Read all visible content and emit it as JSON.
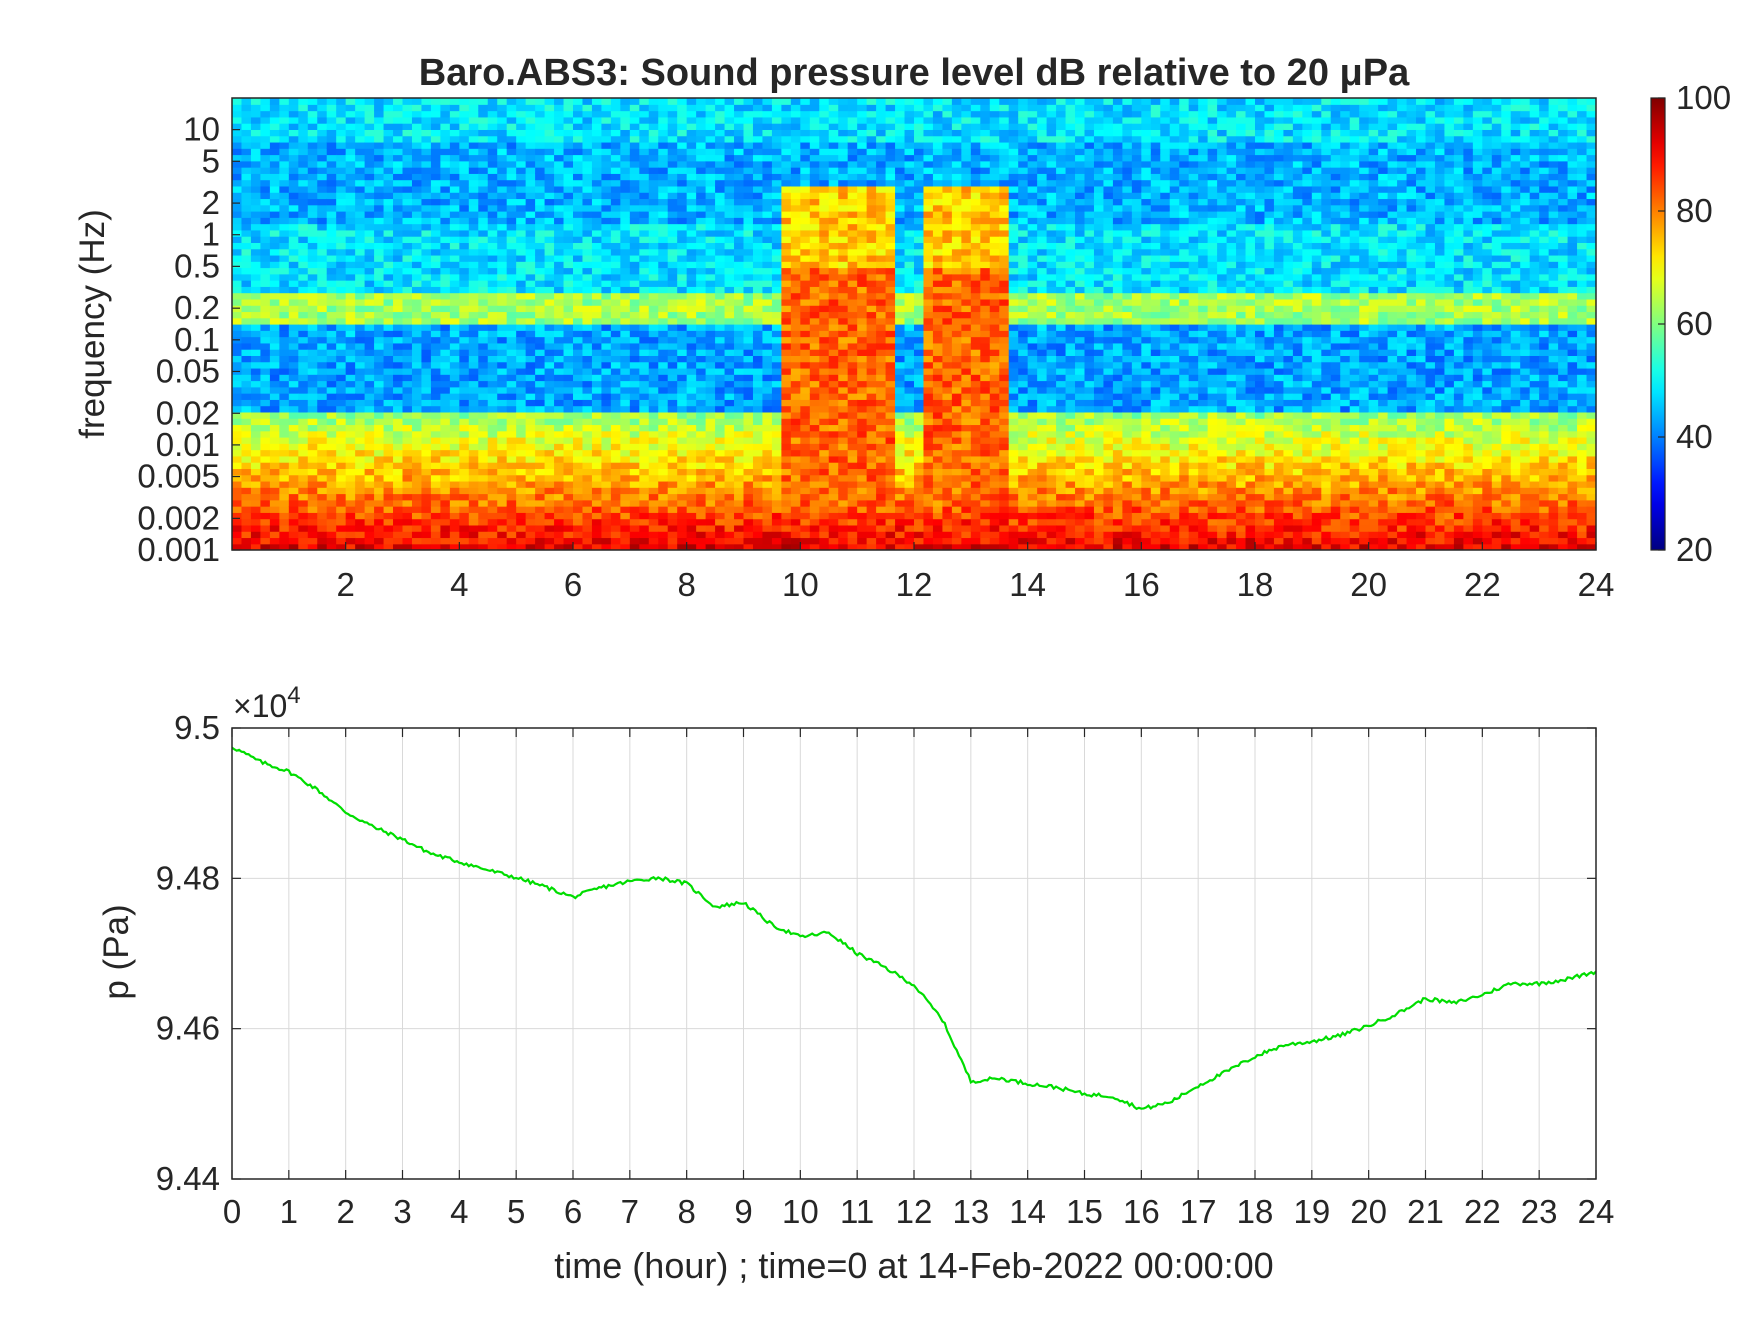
{
  "figure": {
    "background": "#ffffff",
    "axis_color": "#262626",
    "grid_color": "#d9d9d9"
  },
  "chart_data": [
    {
      "type": "heatmap",
      "title": "Baro.ABS3: Sound pressure level dB relative to 20 μPa",
      "xlabel": "",
      "ylabel": "frequency (Hz)",
      "x_unit": "hour",
      "xlim": [
        0,
        24
      ],
      "x_ticks": [
        2,
        4,
        6,
        8,
        10,
        12,
        14,
        16,
        18,
        20,
        22,
        24
      ],
      "y_scale": "log",
      "ylim": [
        0.001,
        20
      ],
      "y_ticks": [
        0.001,
        0.002,
        0.005,
        0.01,
        0.02,
        0.05,
        0.1,
        0.2,
        0.5,
        1,
        2,
        5,
        10
      ],
      "y_tick_labels": [
        "0.001",
        "0.002",
        "0.005",
        "0.01",
        "0.02",
        "0.05",
        "0.1",
        "0.2",
        "0.5",
        "1",
        "2",
        "5",
        "10"
      ],
      "colormap": "jet",
      "colorbar": {
        "range": [
          20,
          100
        ],
        "ticks": [
          20,
          40,
          60,
          80,
          100
        ],
        "tick_labels": [
          "20",
          "40",
          "60",
          "80",
          "100"
        ]
      },
      "features": {
        "background_level_db": 48,
        "microbarom_band_hz": [
          0.15,
          0.3
        ],
        "microbarom_level_db": 63,
        "quiet_band_hz": [
          0.02,
          0.14
        ],
        "quiet_band_level_db": 43,
        "low_frequency_level_db": 90,
        "high_activity_periods_hour": [
          [
            9.7,
            11.6
          ],
          [
            12.1,
            13.7
          ]
        ],
        "high_activity_level_db": 82
      }
    },
    {
      "type": "line",
      "title": "",
      "xlabel": "time (hour) ; time=0 at 14-Feb-2022 00:00:00",
      "ylabel": "p (Pa)",
      "xlim": [
        0,
        24
      ],
      "ylim": [
        94400,
        95000
      ],
      "x_ticks": [
        0,
        1,
        2,
        3,
        4,
        5,
        6,
        7,
        8,
        9,
        10,
        11,
        12,
        13,
        14,
        15,
        16,
        17,
        18,
        19,
        20,
        21,
        22,
        23,
        24
      ],
      "x_tick_labels": [
        "0",
        "1",
        "2",
        "3",
        "4",
        "5",
        "6",
        "7",
        "8",
        "9",
        "10",
        "11",
        "12",
        "13",
        "14",
        "15",
        "16",
        "17",
        "18",
        "19",
        "20",
        "21",
        "22",
        "23",
        "24"
      ],
      "y_ticks": [
        94400,
        94600,
        94800,
        95000
      ],
      "y_tick_labels": [
        "9.44",
        "9.46",
        "9.48",
        "9.5"
      ],
      "y_exponent_label": "×10",
      "y_exponent_power": "4",
      "grid": true,
      "series": [
        {
          "color": "#00dd00",
          "x": [
            0,
            0.5,
            1,
            1.5,
            2,
            2.5,
            3,
            3.5,
            4,
            4.5,
            5,
            5.5,
            6,
            6.5,
            7,
            7.5,
            8,
            8.5,
            9,
            9.5,
            10,
            10.5,
            11,
            11.5,
            12,
            12.5,
            13,
            13.5,
            14,
            14.5,
            15,
            15.5,
            16,
            16.5,
            17,
            17.5,
            18,
            18.5,
            19,
            19.5,
            20,
            20.5,
            21,
            21.5,
            22,
            22.5,
            23,
            23.5,
            24
          ],
          "y": [
            94975,
            94955,
            94942,
            94918,
            94888,
            94868,
            94852,
            94833,
            94822,
            94811,
            94801,
            94789,
            94775,
            94788,
            94796,
            94801,
            94793,
            94762,
            94768,
            94738,
            94722,
            94728,
            94700,
            94681,
            94658,
            94612,
            94530,
            94534,
            94527,
            94522,
            94513,
            94510,
            94493,
            94502,
            94524,
            94543,
            94563,
            94578,
            94583,
            94591,
            94604,
            94620,
            94640,
            94634,
            94645,
            94660,
            94660,
            94666,
            94676
          ]
        }
      ]
    }
  ]
}
